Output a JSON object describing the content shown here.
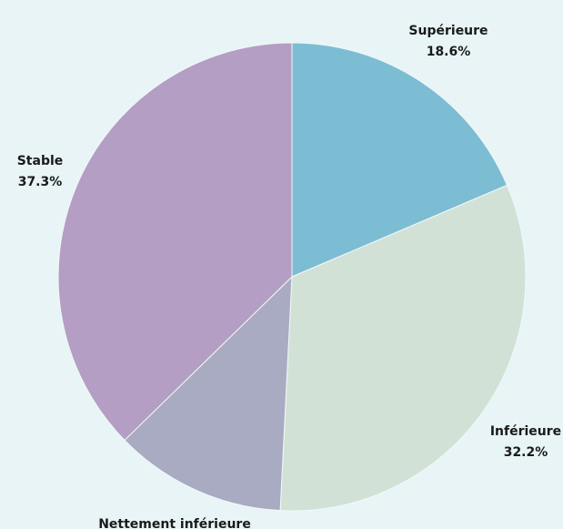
{
  "chart_data": {
    "type": "pie",
    "start_angle_deg": 0,
    "direction": "clockwise",
    "slices": [
      {
        "label": "Supérieure",
        "value": 18.6,
        "value_text": "18.6%",
        "color": "#7dbdd3"
      },
      {
        "label": "Inférieure",
        "value": 32.2,
        "value_text": "32.2%",
        "color": "#d1e1d6"
      },
      {
        "label": "Nettement inférieure",
        "value": 11.9,
        "color": "#a9abc2"
      },
      {
        "label": "Stable",
        "value": 37.3,
        "value_text": "37.3%",
        "color": "#b49ec3"
      }
    ]
  },
  "colors": {
    "background": "#e8f4f6",
    "label_text": "#1a1a1a"
  }
}
